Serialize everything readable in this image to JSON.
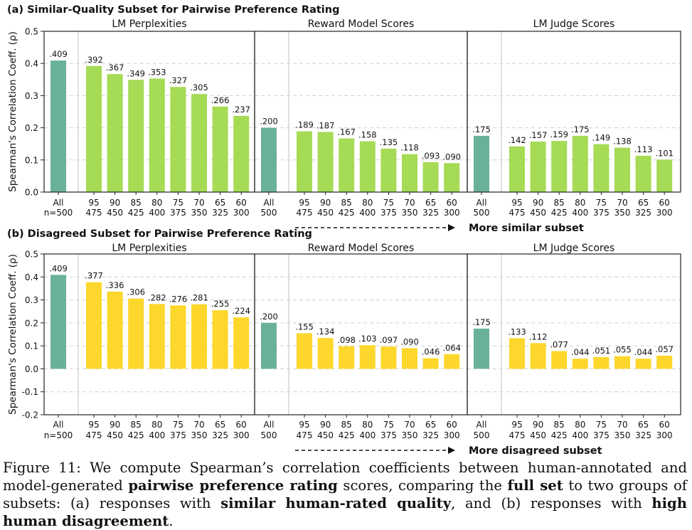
{
  "figure": {
    "ylabel": "Spearman's Correlation Coeff. (ρ)",
    "panel_titles": [
      "LM Perplexities",
      "Reward Model Scores",
      "LM Judge Scores"
    ],
    "colors": {
      "full": "#6ab19b",
      "similar": "#a5db55",
      "disagreed": "#fdd72c",
      "grid": "#d0d0d0",
      "divider": "#cccccc"
    }
  },
  "chart_data": [
    {
      "type": "bar",
      "title": "(a) Similar-Quality Subset for Pairwise Preference Rating",
      "arrow_label": "More similar subset",
      "ylim": [
        0,
        0.5
      ],
      "yticks": [
        "0.0",
        "0.1",
        "0.2",
        "0.3",
        "0.4",
        "0.5"
      ],
      "categories": [
        [
          "All",
          "n=500"
        ],
        [
          "95",
          "475"
        ],
        [
          "90",
          "450"
        ],
        [
          "85",
          "425"
        ],
        [
          "80",
          "400"
        ],
        [
          "75",
          "375"
        ],
        [
          "70",
          "350"
        ],
        [
          "65",
          "325"
        ],
        [
          "60",
          "300"
        ]
      ],
      "panels": [
        {
          "name": "LM Perplexities",
          "values": [
            0.409,
            0.392,
            0.367,
            0.349,
            0.353,
            0.327,
            0.305,
            0.266,
            0.237
          ],
          "labels": [
            ".409",
            ".392",
            ".367",
            ".349",
            ".353",
            ".327",
            ".305",
            ".266",
            ".237"
          ]
        },
        {
          "name": "Reward Model Scores",
          "values": [
            0.2,
            0.189,
            0.187,
            0.167,
            0.158,
            0.135,
            0.118,
            0.093,
            0.09
          ],
          "labels": [
            ".200",
            ".189",
            ".187",
            ".167",
            ".158",
            ".135",
            ".118",
            ".093",
            ".090"
          ]
        },
        {
          "name": "LM Judge Scores",
          "values": [
            0.175,
            0.142,
            0.157,
            0.159,
            0.175,
            0.149,
            0.138,
            0.113,
            0.101
          ],
          "labels": [
            ".175",
            ".142",
            ".157",
            ".159",
            ".175",
            ".149",
            ".138",
            ".113",
            ".101"
          ]
        }
      ],
      "grid": true
    },
    {
      "type": "bar",
      "title": "(b) Disagreed Subset for Pairwise Preference Rating",
      "arrow_label": "More disagreed subset",
      "ylim": [
        -0.2,
        0.5
      ],
      "yticks": [
        "-0.2",
        "-0.1",
        "0.0",
        "0.1",
        "0.2",
        "0.3",
        "0.4",
        "0.5"
      ],
      "categories": [
        [
          "All",
          "n=500"
        ],
        [
          "95",
          "475"
        ],
        [
          "90",
          "450"
        ],
        [
          "85",
          "425"
        ],
        [
          "80",
          "400"
        ],
        [
          "75",
          "375"
        ],
        [
          "70",
          "350"
        ],
        [
          "65",
          "325"
        ],
        [
          "60",
          "300"
        ]
      ],
      "panels": [
        {
          "name": "LM Perplexities",
          "values": [
            0.409,
            0.377,
            0.336,
            0.306,
            0.282,
            0.276,
            0.281,
            0.255,
            0.224
          ],
          "labels": [
            ".409",
            ".377",
            ".336",
            ".306",
            ".282",
            ".276",
            ".281",
            ".255",
            ".224"
          ]
        },
        {
          "name": "Reward Model Scores",
          "values": [
            0.2,
            0.155,
            0.134,
            0.098,
            0.103,
            0.097,
            0.09,
            0.046,
            0.064
          ],
          "labels": [
            ".200",
            ".155",
            ".134",
            ".098",
            ".103",
            ".097",
            ".090",
            ".046",
            ".064"
          ]
        },
        {
          "name": "LM Judge Scores",
          "values": [
            0.175,
            0.133,
            0.112,
            0.077,
            0.044,
            0.051,
            0.055,
            0.044,
            0.057
          ],
          "labels": [
            ".175",
            ".133",
            ".112",
            ".077",
            ".044",
            ".051",
            ".055",
            ".044",
            ".057"
          ]
        }
      ],
      "grid": true
    }
  ],
  "caption": {
    "t1": "Figure 11: We compute Spearman’s correlation coefficients between human-annotated and model-generated ",
    "b1": "pairwise preference rating",
    "t2": " scores, comparing the ",
    "b2": "full set",
    "t3": " to two groups of subsets: (a) responses with ",
    "b3": "similar human-rated quality",
    "t4": ", and (b) responses with ",
    "b4": "high human disagreement",
    "t5": "."
  }
}
